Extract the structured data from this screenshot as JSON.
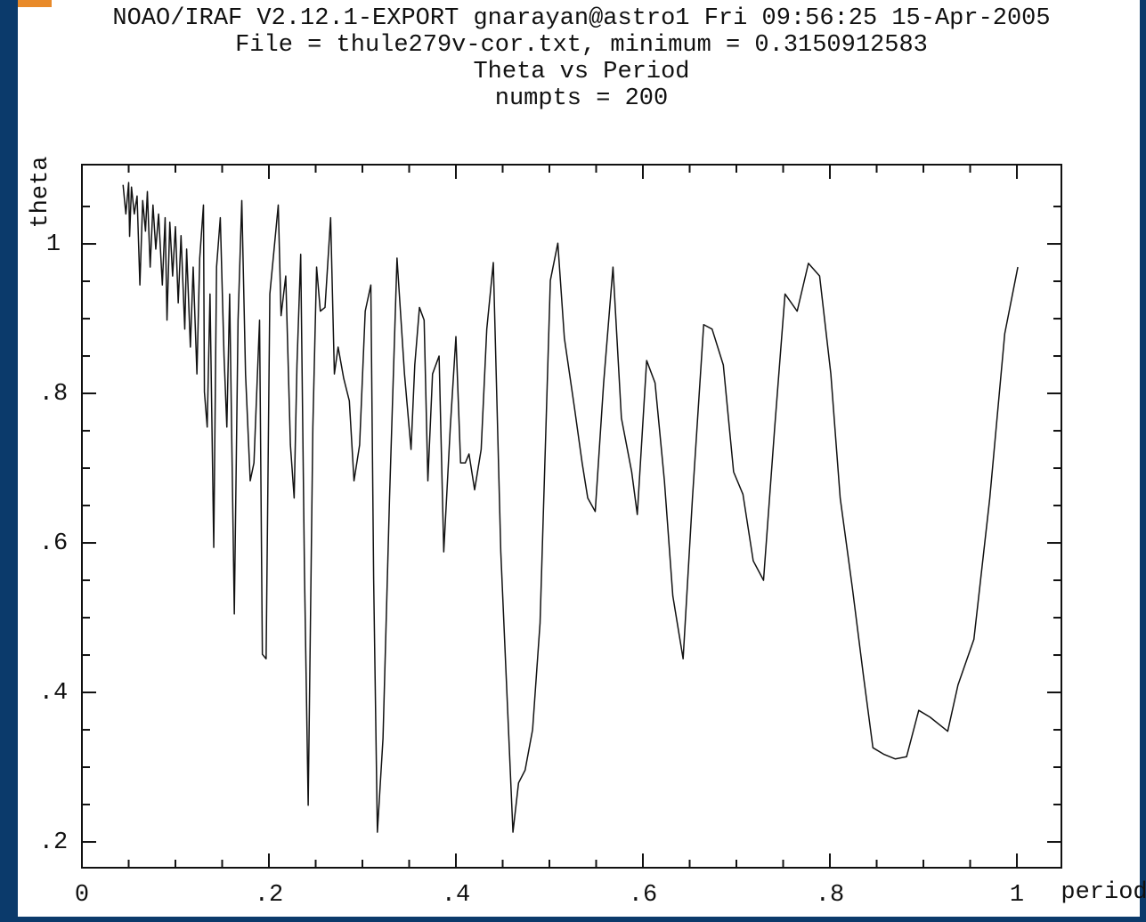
{
  "chart_data": {
    "type": "line",
    "title_lines": [
      "NOAO/IRAF V2.12.1-EXPORT gnarayan@astro1 Fri 09:56:25 15-Apr-2005",
      "File = thule279v-cor.txt, minimum = 0.3150912583",
      "Theta vs Period",
      "numpts = 200"
    ],
    "xlabel": "period",
    "ylabel": "theta",
    "xlim": [
      0,
      1.0476
    ],
    "ylim": [
      0.1655,
      1.106
    ],
    "xticks": [
      0,
      {
        "value": 0.2,
        "label": ".2"
      },
      {
        "value": 0.4,
        "label": ".4"
      },
      {
        "value": 0.6,
        "label": ".6"
      },
      {
        "value": 0.8,
        "label": ".8"
      },
      1
    ],
    "yticks": [
      {
        "value": 0.2,
        "label": ".2"
      },
      {
        "value": 0.4,
        "label": ".4"
      },
      {
        "value": 0.6,
        "label": ".6"
      },
      {
        "value": 0.8,
        "label": ".8"
      },
      1
    ],
    "xminorticks": [
      0.05,
      0.1,
      0.15,
      0.25,
      0.3,
      0.35,
      0.45,
      0.5,
      0.55,
      0.65,
      0.7,
      0.75,
      0.85,
      0.9,
      0.95
    ],
    "yminorticks": [
      0.25,
      0.3,
      0.35,
      0.45,
      0.5,
      0.55,
      0.65,
      0.7,
      0.75,
      0.85,
      0.9,
      0.95,
      1.05
    ],
    "color": "#111111",
    "x": [
      0.044,
      0.047,
      0.05,
      0.051,
      0.053,
      0.056,
      0.059,
      0.062,
      0.065,
      0.068,
      0.07,
      0.073,
      0.076,
      0.079,
      0.082,
      0.086,
      0.089,
      0.091,
      0.094,
      0.097,
      0.1,
      0.103,
      0.106,
      0.11,
      0.112,
      0.116,
      0.119,
      0.123,
      0.126,
      0.13,
      0.131,
      0.134,
      0.137,
      0.141,
      0.144,
      0.148,
      0.152,
      0.155,
      0.158,
      0.163,
      0.167,
      0.171,
      0.175,
      0.18,
      0.184,
      0.19,
      0.193,
      0.197,
      0.201,
      0.206,
      0.21,
      0.213,
      0.218,
      0.223,
      0.227,
      0.23,
      0.234,
      0.238,
      0.242,
      0.247,
      0.251,
      0.255,
      0.26,
      0.266,
      0.27,
      0.274,
      0.28,
      0.286,
      0.291,
      0.297,
      0.303,
      0.309,
      0.312,
      0.316,
      0.322,
      0.329,
      0.337,
      0.345,
      0.352,
      0.356,
      0.361,
      0.366,
      0.37,
      0.375,
      0.382,
      0.387,
      0.394,
      0.4,
      0.405,
      0.41,
      0.414,
      0.42,
      0.427,
      0.433,
      0.44,
      0.448,
      0.455,
      0.461,
      0.467,
      0.474,
      0.482,
      0.49,
      0.501,
      0.509,
      0.516,
      0.527,
      0.535,
      0.541,
      0.549,
      0.558,
      0.568,
      0.577,
      0.588,
      0.594,
      0.604,
      0.613,
      0.623,
      0.632,
      0.643,
      0.653,
      0.665,
      0.674,
      0.686,
      0.697,
      0.707,
      0.718,
      0.729,
      0.741,
      0.752,
      0.765,
      0.777,
      0.789,
      0.801,
      0.811,
      0.824,
      0.836,
      0.846,
      0.858,
      0.87,
      0.882,
      0.895,
      0.907,
      0.926,
      0.937,
      0.954,
      0.971,
      0.987,
      1.001
    ],
    "values": [
      1.079,
      1.04,
      1.082,
      1.01,
      1.076,
      1.04,
      1.064,
      0.945,
      1.058,
      1.017,
      1.07,
      0.969,
      1.052,
      0.993,
      1.04,
      0.945,
      1.035,
      0.898,
      1.029,
      0.957,
      1.023,
      0.921,
      1.011,
      0.886,
      0.993,
      0.862,
      0.969,
      0.826,
      0.981,
      1.052,
      0.802,
      0.755,
      0.933,
      0.594,
      0.969,
      1.035,
      0.85,
      0.755,
      0.933,
      0.505,
      0.898,
      1.058,
      0.826,
      0.683,
      0.707,
      0.898,
      0.451,
      0.445,
      0.933,
      0.999,
      1.052,
      0.904,
      0.957,
      0.731,
      0.66,
      0.838,
      0.986,
      0.564,
      0.249,
      0.755,
      0.969,
      0.91,
      0.915,
      1.035,
      0.826,
      0.862,
      0.82,
      0.79,
      0.683,
      0.731,
      0.91,
      0.945,
      0.552,
      0.213,
      0.338,
      0.66,
      0.981,
      0.826,
      0.725,
      0.838,
      0.915,
      0.898,
      0.683,
      0.826,
      0.85,
      0.588,
      0.755,
      0.876,
      0.707,
      0.707,
      0.719,
      0.671,
      0.725,
      0.886,
      0.975,
      0.588,
      0.386,
      0.213,
      0.279,
      0.296,
      0.35,
      0.493,
      0.951,
      1.001,
      0.874,
      0.779,
      0.707,
      0.66,
      0.642,
      0.814,
      0.969,
      0.767,
      0.695,
      0.638,
      0.844,
      0.814,
      0.683,
      0.529,
      0.445,
      0.66,
      0.892,
      0.886,
      0.838,
      0.695,
      0.665,
      0.576,
      0.55,
      0.755,
      0.933,
      0.91,
      0.974,
      0.957,
      0.826,
      0.66,
      0.54,
      0.421,
      0.326,
      0.317,
      0.311,
      0.314,
      0.376,
      0.367,
      0.348,
      0.41,
      0.471,
      0.66,
      0.88,
      0.969
    ]
  }
}
